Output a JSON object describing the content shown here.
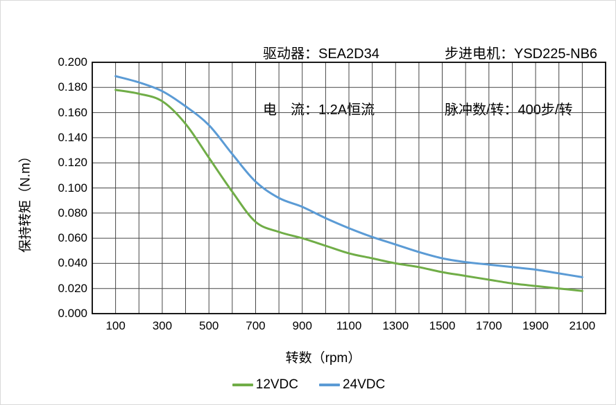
{
  "header": {
    "driver": {
      "label": "驱动器：",
      "value": "SEA2D34"
    },
    "current": {
      "label": "电　流：",
      "value": "1.2A恒流"
    },
    "motor": {
      "label": "步进电机：",
      "value": "YSD225-NB6"
    },
    "pulses_per_rev": {
      "label": "脉冲数/转：",
      "value": "400步/转"
    }
  },
  "chart_data": {
    "type": "line",
    "title": "",
    "xlabel": "转数（rpm）",
    "ylabel": "保持转矩（N.m）",
    "xlim": [
      0,
      2200
    ],
    "ylim": [
      0,
      0.2
    ],
    "grid": "on",
    "grid_x_step": 100,
    "grid_y_step": 0.02,
    "legend_position": "bottom",
    "x_tick_labels": [
      "100",
      "300",
      "500",
      "700",
      "900",
      "1100",
      "1300",
      "1500",
      "1700",
      "1900",
      "2100"
    ],
    "y_tick_labels": [
      "0.000",
      "0.020",
      "0.040",
      "0.060",
      "0.080",
      "0.100",
      "0.120",
      "0.140",
      "0.160",
      "0.180",
      "0.200"
    ],
    "x": [
      100,
      200,
      300,
      400,
      500,
      600,
      700,
      800,
      900,
      1000,
      1100,
      1200,
      1300,
      1400,
      1500,
      1600,
      1700,
      1800,
      1900,
      2000,
      2100
    ],
    "series": [
      {
        "name": "12VDC",
        "color": "#70AD47",
        "values": [
          0.178,
          0.175,
          0.169,
          0.151,
          0.124,
          0.097,
          0.073,
          0.065,
          0.06,
          0.054,
          0.048,
          0.044,
          0.04,
          0.037,
          0.033,
          0.03,
          0.027,
          0.024,
          0.022,
          0.02,
          0.018
        ]
      },
      {
        "name": "24VDC",
        "color": "#5B9BD5",
        "values": [
          0.189,
          0.184,
          0.177,
          0.165,
          0.15,
          0.127,
          0.105,
          0.092,
          0.085,
          0.076,
          0.068,
          0.061,
          0.055,
          0.049,
          0.044,
          0.041,
          0.039,
          0.037,
          0.035,
          0.032,
          0.029
        ]
      }
    ]
  },
  "colors": {
    "gridline": "#474747",
    "plot_border": "#000000",
    "text": "#000000",
    "chart_frame": "#d9d9d9",
    "background": "#ffffff"
  }
}
